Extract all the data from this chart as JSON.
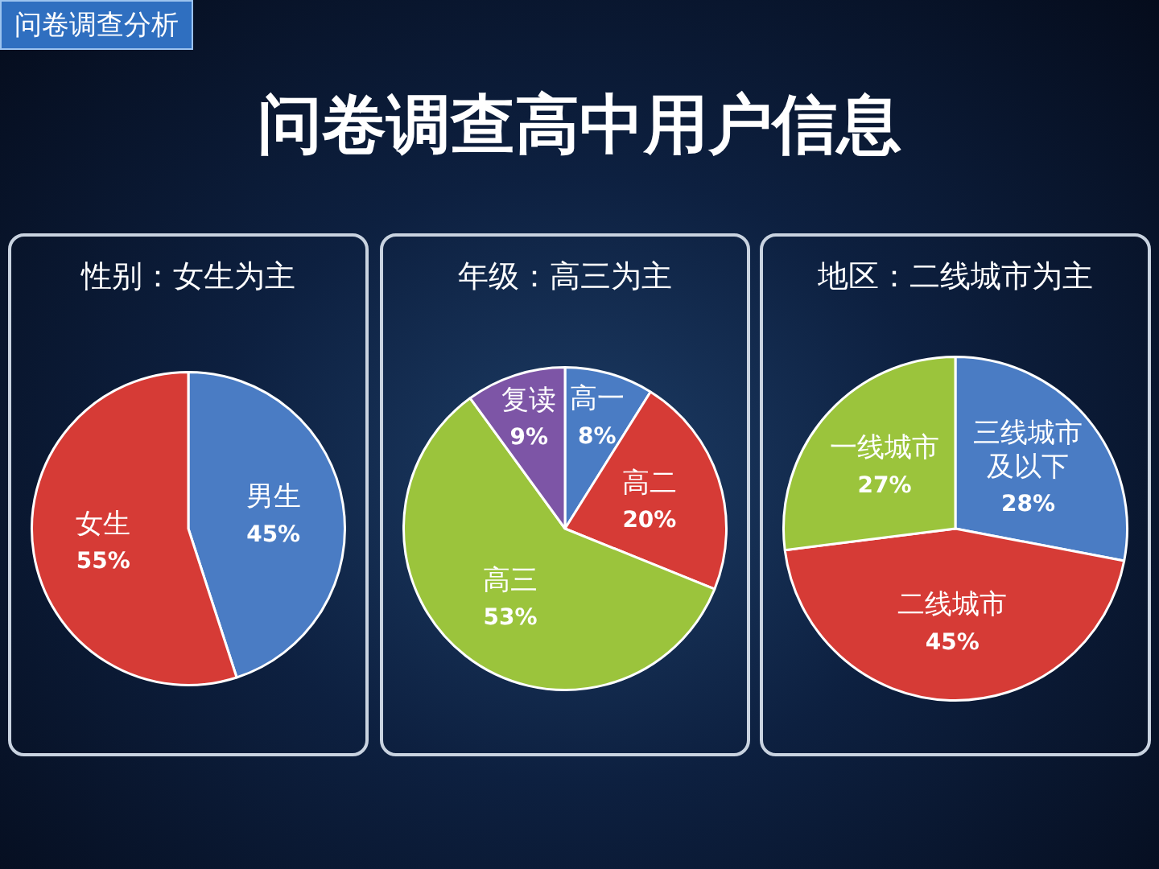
{
  "chart_data": [
    {
      "type": "other",
      "title": "问卷调查高中用户信息",
      "annotations": [
        "问卷调查分析"
      ]
    },
    {
      "type": "pie",
      "title": "性别：女生为主",
      "categories": [
        "男生",
        "女生"
      ],
      "values": [
        45,
        55
      ],
      "colors": [
        "#4a7cc4",
        "#d63b36"
      ],
      "value_labels": [
        "45%",
        "55%"
      ]
    },
    {
      "type": "pie",
      "title": "年级：高三为主",
      "categories": [
        "高一",
        "高二",
        "高三",
        "复读"
      ],
      "values": [
        8,
        20,
        53,
        9
      ],
      "colors": [
        "#4a7cc4",
        "#d63b36",
        "#9bc43c",
        "#7d55a6"
      ],
      "value_labels": [
        "8%",
        "20%",
        "53%",
        "9%"
      ]
    },
    {
      "type": "pie",
      "title": "地区：二线城市为主",
      "categories": [
        "三线城市及以下",
        "二线城市",
        "一线城市"
      ],
      "values": [
        28,
        45,
        27
      ],
      "colors": [
        "#4a7cc4",
        "#d63b36",
        "#9bc43c"
      ],
      "value_labels": [
        "28%",
        "45%",
        "27%"
      ]
    }
  ]
}
